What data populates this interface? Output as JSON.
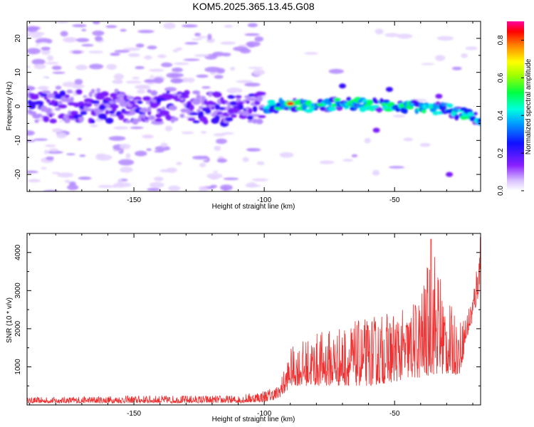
{
  "title": "KOM5.2025.365.13.45.G08",
  "chart_data": [
    {
      "type": "heatmap",
      "title": "KOM5.2025.365.13.45.G08",
      "xlabel": "Height of straight line (km)",
      "ylabel": "Frequency (Hz)",
      "xlim": [
        -191,
        -17
      ],
      "ylim": [
        -25,
        25
      ],
      "xticks": [
        -150,
        -100,
        -50
      ],
      "yticks": [
        -20,
        -10,
        0,
        10,
        20
      ],
      "colorbar": {
        "label": "Normalized spectral amplitude",
        "range": [
          0.0,
          0.9
        ],
        "ticks": [
          0.0,
          0.2,
          0.4,
          0.6,
          0.8
        ],
        "colormap": "white-violet-blue-cyan-green-yellow-red-magenta"
      },
      "signal_track": {
        "description": "dispersed signal band near 0 Hz",
        "x": [
          -190,
          -160,
          -130,
          -110,
          -100,
          -90,
          -80,
          -70,
          -60,
          -50,
          -40,
          -30,
          -25,
          -20,
          -17
        ],
        "center_hz": [
          0,
          0,
          0,
          -1,
          0,
          0.5,
          0,
          1,
          0.5,
          0,
          0,
          -1,
          -2,
          -3,
          -4
        ]
      },
      "peak": {
        "x": -90,
        "y": 0.8,
        "amplitude": 0.88
      }
    },
    {
      "type": "line",
      "title": "",
      "xlabel": "Height of straight line (km)",
      "ylabel": "SNR (10 * v/v)",
      "xlim": [
        -191,
        -17
      ],
      "ylim": [
        0,
        4500
      ],
      "xticks": [
        -150,
        -100,
        -50
      ],
      "yticks": [
        1000,
        2000,
        3000,
        4000
      ],
      "color": "#f03030",
      "envelope": {
        "x": [
          -191,
          -150,
          -110,
          -100,
          -95,
          -92,
          -90,
          -80,
          -70,
          -60,
          -50,
          -45,
          -40,
          -35,
          -30,
          -25,
          -22,
          -20,
          -18,
          -17
        ],
        "low": [
          50,
          50,
          50,
          80,
          150,
          300,
          500,
          500,
          500,
          500,
          600,
          700,
          700,
          800,
          800,
          800,
          1800,
          2200,
          2800,
          3300
        ],
        "high": [
          200,
          250,
          250,
          400,
          500,
          1000,
          1500,
          1900,
          2100,
          2300,
          2500,
          2500,
          3000,
          4300,
          2800,
          2200,
          2500,
          3000,
          4000,
          4400
        ]
      },
      "peaks": [
        {
          "x": -36,
          "y": 4350
        },
        {
          "x": -17,
          "y": 4400
        }
      ]
    }
  ]
}
